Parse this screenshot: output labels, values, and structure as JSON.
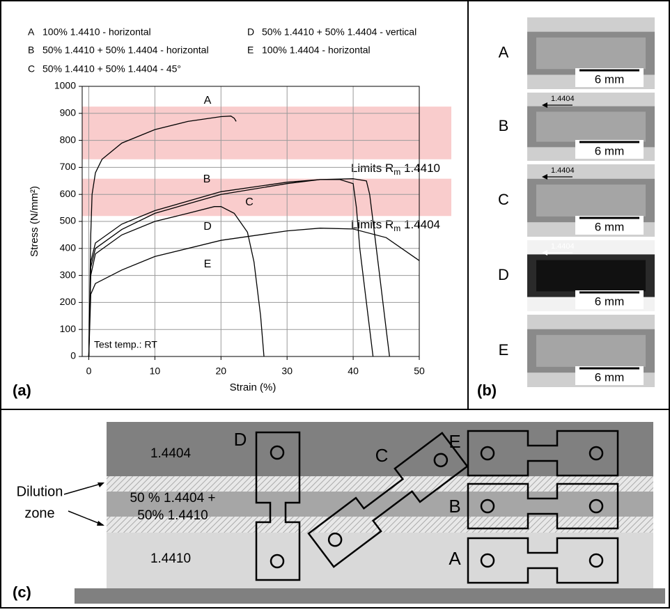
{
  "chart_data": {
    "type": "line",
    "panel_label": "(a)",
    "xlabel": "Strain (%)",
    "ylabel": "Stress (N/mm²)",
    "xlim": [
      -1,
      50
    ],
    "ylim": [
      0,
      1000
    ],
    "xticks": [
      0,
      10,
      20,
      30,
      40,
      50
    ],
    "yticks": [
      0,
      100,
      200,
      300,
      400,
      500,
      600,
      700,
      800,
      900,
      1000
    ],
    "grid": true,
    "annotation": "Test temp.: RT",
    "bands": [
      {
        "label": [
          "Limits R",
          "m",
          " 1.4410"
        ],
        "from": 730,
        "to": 925,
        "color": "#f9cccc"
      },
      {
        "label": [
          "Limits R",
          "m",
          " 1.4404"
        ],
        "from": 520,
        "to": 658,
        "color": "#f9cccc"
      }
    ],
    "series": [
      {
        "name": "A",
        "label": "100% 1.4410 - horizontal",
        "color": "#000000",
        "x": [
          0,
          0.3,
          0.5,
          1,
          2,
          5,
          10,
          15,
          20,
          21.5,
          22,
          22.3
        ],
        "values": [
          0,
          450,
          600,
          680,
          730,
          790,
          840,
          870,
          888,
          890,
          882,
          870
        ]
      },
      {
        "name": "B",
        "label": "50% 1.4410 + 50% 1.4404 - horizontal",
        "color": "#000000",
        "x": [
          0,
          0.3,
          1,
          5,
          10,
          20,
          30,
          35,
          40,
          42,
          42.5,
          43,
          44,
          45,
          45.5
        ],
        "values": [
          0,
          350,
          420,
          490,
          540,
          610,
          645,
          655,
          658,
          650,
          600,
          500,
          300,
          100,
          0
        ]
      },
      {
        "name": "C",
        "label": "50%  1.4410 + 50% 1.4404 - 45°",
        "color": "#000000",
        "x": [
          0,
          0.3,
          1,
          5,
          10,
          20,
          30,
          35,
          38,
          40,
          40.5,
          41,
          42,
          43
        ],
        "values": [
          0,
          330,
          400,
          470,
          530,
          600,
          640,
          655,
          655,
          640,
          550,
          400,
          200,
          0
        ]
      },
      {
        "name": "D",
        "label": "50% 1.4410 + 50% 1.4404 - vertical",
        "color": "#000000",
        "x": [
          0,
          0.3,
          1,
          5,
          10,
          15,
          19,
          20,
          22,
          24,
          25,
          26,
          26.5
        ],
        "values": [
          0,
          300,
          380,
          450,
          500,
          530,
          555,
          555,
          530,
          460,
          350,
          150,
          0
        ]
      },
      {
        "name": "E",
        "label": "100% 1.4404 - horizontal",
        "color": "#000000",
        "x": [
          0,
          0.3,
          1,
          5,
          10,
          20,
          30,
          35,
          40,
          45,
          50
        ],
        "values": [
          0,
          230,
          270,
          320,
          370,
          430,
          465,
          475,
          472,
          440,
          355
        ]
      }
    ]
  },
  "panel_b": {
    "panel_label": "(b)",
    "rows": [
      {
        "label": "A",
        "scale": "6 mm"
      },
      {
        "label": "B",
        "scale": "6 mm",
        "marker": "1.4404"
      },
      {
        "label": "C",
        "scale": "6 mm",
        "marker": "1.4404"
      },
      {
        "label": "D",
        "scale": "6 mm",
        "marker": "1.4404"
      },
      {
        "label": "E",
        "scale": "6 mm"
      }
    ]
  },
  "panel_c": {
    "panel_label": "(c)",
    "layers": [
      {
        "lines": [
          "1.4404"
        ]
      },
      {
        "lines": [
          "50 % 1.4404 +",
          "50% 1.4410"
        ]
      },
      {
        "lines": [
          "1.4410"
        ]
      }
    ],
    "dilution_label": [
      "Dilution",
      "zone"
    ],
    "specimens": [
      "D",
      "C",
      "E",
      "B",
      "A"
    ]
  }
}
